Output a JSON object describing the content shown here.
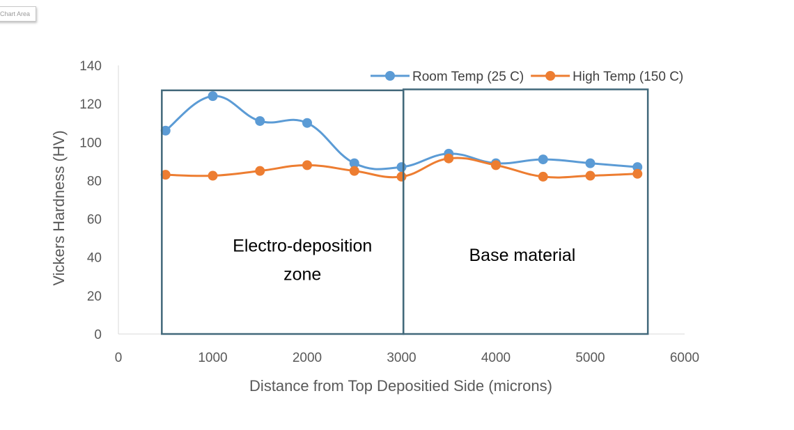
{
  "chart_area_label": "Chart Area",
  "chart_data": {
    "type": "line",
    "title": "",
    "xlabel": "Distance from Top Depositied Side (microns)",
    "ylabel": "Vickers Hardness (HV)",
    "xlim": [
      0,
      6000
    ],
    "ylim": [
      0,
      140
    ],
    "xticks": [
      0,
      1000,
      2000,
      3000,
      4000,
      5000,
      6000
    ],
    "yticks": [
      0,
      20,
      40,
      60,
      80,
      100,
      120,
      140
    ],
    "grid": false,
    "legend_position": "top-right",
    "smooth": true,
    "series": [
      {
        "name": "Room Temp (25 C)",
        "color": "#5B9BD5",
        "x": [
          500,
          1000,
          1500,
          2000,
          2500,
          3000,
          3500,
          4000,
          4500,
          5000,
          5500
        ],
        "y": [
          106,
          124,
          111,
          110,
          89,
          87,
          94,
          89,
          91,
          89,
          87
        ]
      },
      {
        "name": "High Temp (150 C)",
        "color": "#ED7D31",
        "x": [
          500,
          1000,
          1500,
          2000,
          2500,
          3000,
          3500,
          4000,
          4500,
          5000,
          5500
        ],
        "y": [
          83,
          82.5,
          85,
          88,
          85,
          82,
          91.5,
          88,
          82,
          82.5,
          83.5
        ]
      }
    ],
    "annotations": [
      {
        "name": "electro-deposition-zone",
        "lines": [
          "Electro-deposition",
          "zone"
        ],
        "x_range": [
          460,
          3020
        ],
        "y_range": [
          0,
          127
        ],
        "label_at": [
          1950,
          43
        ]
      },
      {
        "name": "base-material",
        "lines": [
          "Base material"
        ],
        "x_range": [
          3020,
          5610
        ],
        "y_range": [
          0,
          127.5
        ],
        "label_at": [
          4280,
          38
        ]
      }
    ],
    "box_color": "#41687A"
  }
}
